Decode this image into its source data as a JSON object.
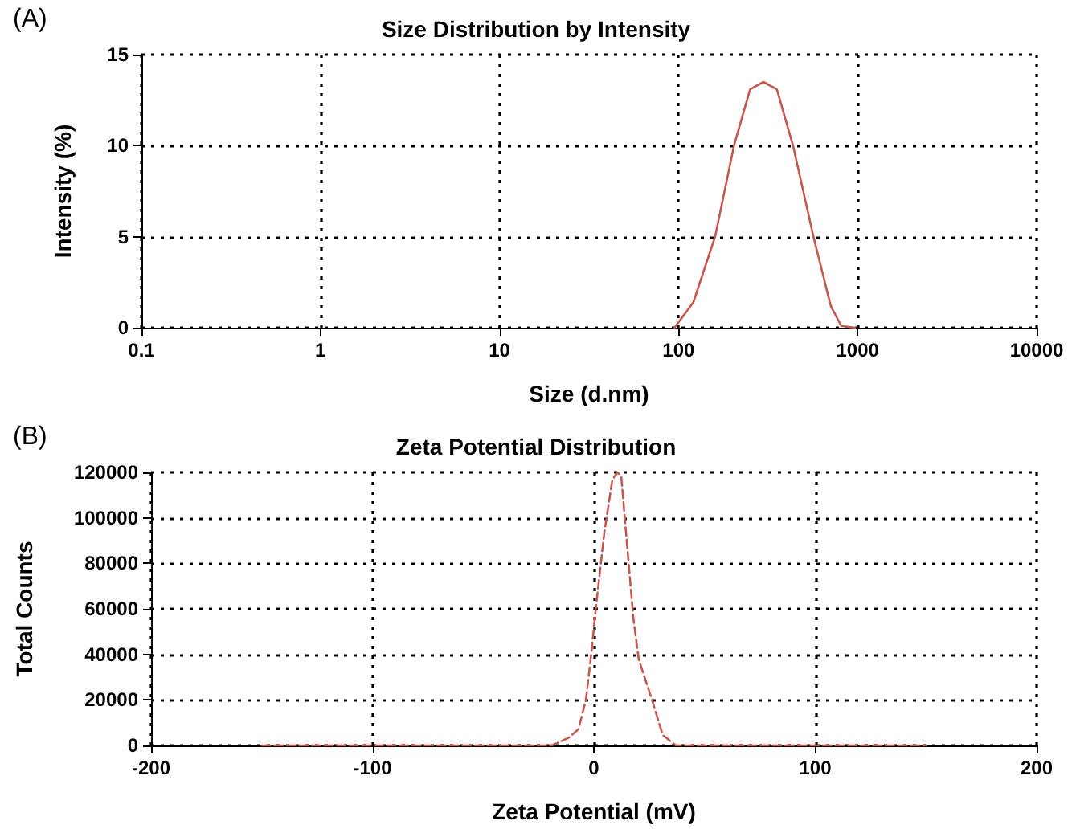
{
  "chart_data": [
    {
      "type": "line",
      "title": "Size Distribution by Intensity",
      "xlabel": "Size (d.nm)",
      "ylabel": "Intensity (%)",
      "annotations": [
        "(A)"
      ],
      "series": [
        {
          "color": "#c8564a",
          "x": [
            95,
            121,
            160,
            204,
            251,
            298,
            354,
            436,
            567,
            708,
            811,
            967
          ],
          "values": [
            0,
            1.4,
            5,
            10,
            13.1,
            13.5,
            13.1,
            10,
            5,
            1.2,
            0.1,
            0
          ]
        }
      ],
      "log": "x",
      "xlim": [
        0.1,
        10000
      ],
      "xticks": [
        0.1,
        1,
        10,
        100,
        1000,
        10000
      ],
      "ylim": [
        0,
        15
      ],
      "yticks": [
        0,
        5,
        10,
        15
      ],
      "grid": true,
      "line_style": "solid",
      "marker": "none"
    },
    {
      "type": "line",
      "title": "Zeta Potential Distribution",
      "xlabel": "Zeta Potential (mV)",
      "ylabel": "Total Counts",
      "annotations": [
        "(B)"
      ],
      "series": [
        {
          "color": "#c8564a",
          "x": [
            -150,
            -19,
            -11.5,
            -7,
            -3.6,
            -1.2,
            1.2,
            4.8,
            8.4,
            10.8,
            12.4,
            14.3,
            17.9,
            20.3,
            26.3,
            31.1,
            37,
            150
          ],
          "values": [
            0,
            0,
            3300,
            7100,
            19900,
            40000,
            63000,
            94000,
            117000,
            120000,
            118000,
            96000,
            55500,
            37700,
            19900,
            4600,
            0,
            0
          ]
        }
      ],
      "xlim": [
        -200,
        200
      ],
      "xticks": [
        -200,
        -100,
        0,
        100,
        200
      ],
      "ylim": [
        0,
        120000
      ],
      "yticks": [
        0,
        20000,
        40000,
        60000,
        80000,
        100000,
        120000
      ],
      "grid": true,
      "line_style": "dashed",
      "marker": "none"
    }
  ]
}
